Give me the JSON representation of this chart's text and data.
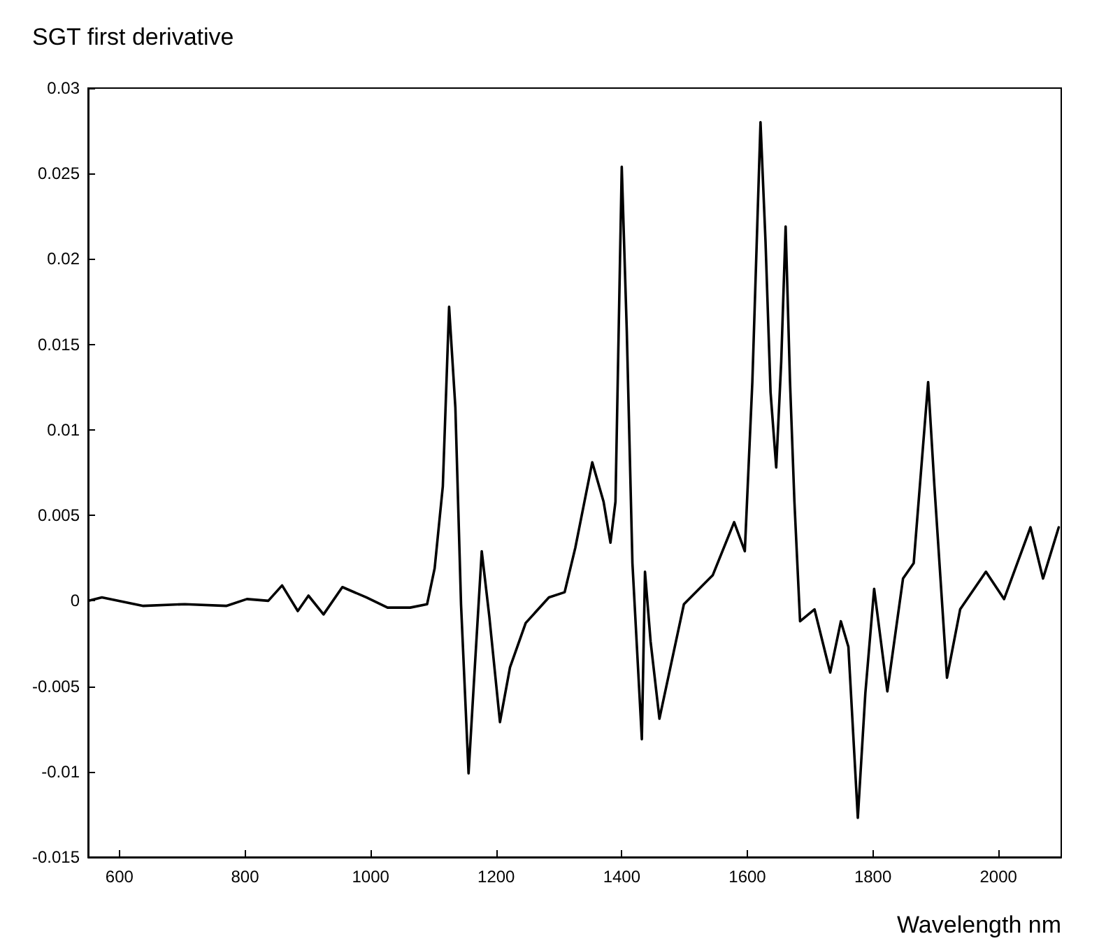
{
  "chart_data": {
    "type": "line",
    "ylabel": "SGT first derivative",
    "xlabel": "Wavelength nm",
    "xlim": [
      550,
      2100
    ],
    "xticks": [
      600,
      800,
      1000,
      1200,
      1400,
      1600,
      1800,
      2000
    ],
    "ylim": [
      -0.015,
      0.03
    ],
    "yticks": [
      -0.015,
      -0.01,
      -0.005,
      0,
      0.005,
      0.01,
      0.015,
      0.02,
      0.025,
      0.03
    ],
    "grid": false,
    "marker": "none",
    "line_style": "solid",
    "series": [
      {
        "color": "#000000",
        "x": [
          551,
          572,
          638,
          704,
          770,
          803,
          837,
          859,
          884,
          901,
          925,
          955,
          993,
          1027,
          1063,
          1090,
          1102,
          1115,
          1125,
          1135,
          1144,
          1156,
          1164,
          1177,
          1189,
          1206,
          1222,
          1247,
          1284,
          1309,
          1326,
          1353,
          1371,
          1382,
          1390,
          1400,
          1408,
          1417,
          1432,
          1437,
          1446,
          1460,
          1499,
          1545,
          1579,
          1596,
          1608,
          1621,
          1629,
          1637,
          1646,
          1654,
          1661,
          1668,
          1675,
          1684,
          1707,
          1732,
          1749,
          1761,
          1776,
          1788,
          1802,
          1823,
          1848,
          1865,
          1888,
          1898,
          1918,
          1939,
          1980,
          2009,
          2051,
          2071,
          2096
        ],
        "values": [
          0,
          0.0002,
          -0.0003,
          -0.0002,
          -0.0003,
          0.0001,
          0,
          0.0009,
          -0.0006,
          0.0003,
          -0.0008,
          0.0008,
          0.0002,
          -0.0004,
          -0.0004,
          -0.0002,
          0.0019,
          0.0067,
          0.0172,
          0.0113,
          -0.0002,
          -0.0101,
          -0.0051,
          0.0029,
          -0.0009,
          -0.0071,
          -0.0039,
          -0.0013,
          0.0002,
          0.0005,
          0.0031,
          0.0081,
          0.0058,
          0.0034,
          0.0058,
          0.0254,
          0.0158,
          0.0022,
          -0.0081,
          0.0017,
          -0.0024,
          -0.0069,
          -0.0002,
          0.0015,
          0.0046,
          0.0029,
          0.0128,
          0.028,
          0.021,
          0.0122,
          0.0078,
          0.014,
          0.0219,
          0.0128,
          0.0058,
          -0.0012,
          -0.0005,
          -0.0042,
          -0.0012,
          -0.0027,
          -0.0127,
          -0.0054,
          0.0007,
          -0.0053,
          0.0013,
          0.0022,
          0.0128,
          0.0067,
          -0.0045,
          -0.0005,
          0.0017,
          0.0001,
          0.0043,
          0.0013,
          0.0043
        ]
      }
    ]
  }
}
